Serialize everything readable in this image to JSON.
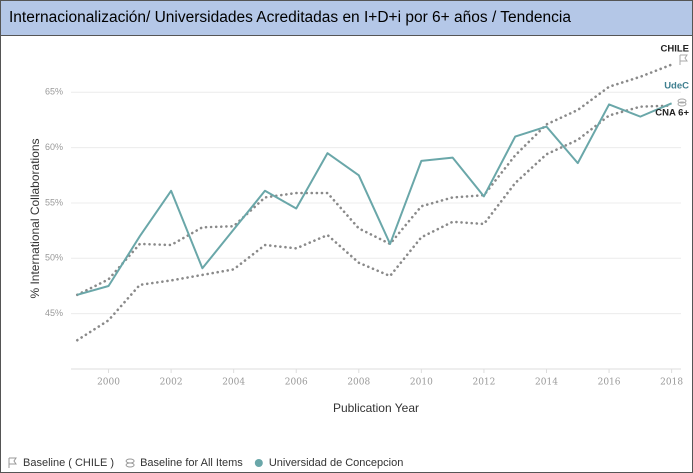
{
  "chart_data": {
    "type": "line",
    "title": "Internacionalización/ Universidades Acreditadas en I+D+i por 6+ años / Tendencia",
    "x_label": "Publication Year",
    "y_label": "% International Collaborations",
    "x": [
      1999,
      2000,
      2001,
      2002,
      2003,
      2004,
      2005,
      2006,
      2007,
      2008,
      2009,
      2010,
      2011,
      2012,
      2013,
      2014,
      2015,
      2016,
      2017,
      2018
    ],
    "series": [
      {
        "name": "Baseline ( CHILE )",
        "end_label": "CHILE",
        "color": "#8a8a8a",
        "style": "dotted",
        "values": [
          46.7,
          48.1,
          51.3,
          51.2,
          52.8,
          52.9,
          55.5,
          55.9,
          55.9,
          52.7,
          51.3,
          54.7,
          55.5,
          55.7,
          59.3,
          62.1,
          63.4,
          65.5,
          66.4,
          67.5
        ]
      },
      {
        "name": "Baseline for All Items",
        "end_label": "CNA 6+",
        "color": "#8a8a8a",
        "style": "dotted",
        "values": [
          42.6,
          44.4,
          47.6,
          48.0,
          48.5,
          49.0,
          51.2,
          50.9,
          52.1,
          49.6,
          48.4,
          51.9,
          53.3,
          53.1,
          56.8,
          59.4,
          60.7,
          62.9,
          63.7,
          63.8
        ]
      },
      {
        "name": "Universidad de Concepcion",
        "end_label": "UdeC",
        "color": "#6aa7a9",
        "style": "solid",
        "values": [
          46.7,
          47.5,
          52.0,
          56.1,
          49.1,
          52.6,
          56.1,
          54.5,
          59.5,
          57.5,
          51.3,
          58.8,
          59.1,
          55.6,
          61.0,
          61.9,
          58.6,
          63.9,
          62.8,
          64.0
        ]
      }
    ],
    "xlim": [
      1998.8,
      2018.3
    ],
    "xticks": [
      2000,
      2002,
      2004,
      2006,
      2008,
      2010,
      2012,
      2014,
      2016,
      2018
    ],
    "ylim": [
      40,
      69
    ],
    "yticks": [
      {
        "value": 45,
        "label": "45%"
      },
      {
        "value": 50,
        "label": "50%"
      },
      {
        "value": 55,
        "label": "55%"
      },
      {
        "value": 60,
        "label": "60%"
      },
      {
        "value": 65,
        "label": "65%"
      }
    ],
    "grid": true
  }
}
